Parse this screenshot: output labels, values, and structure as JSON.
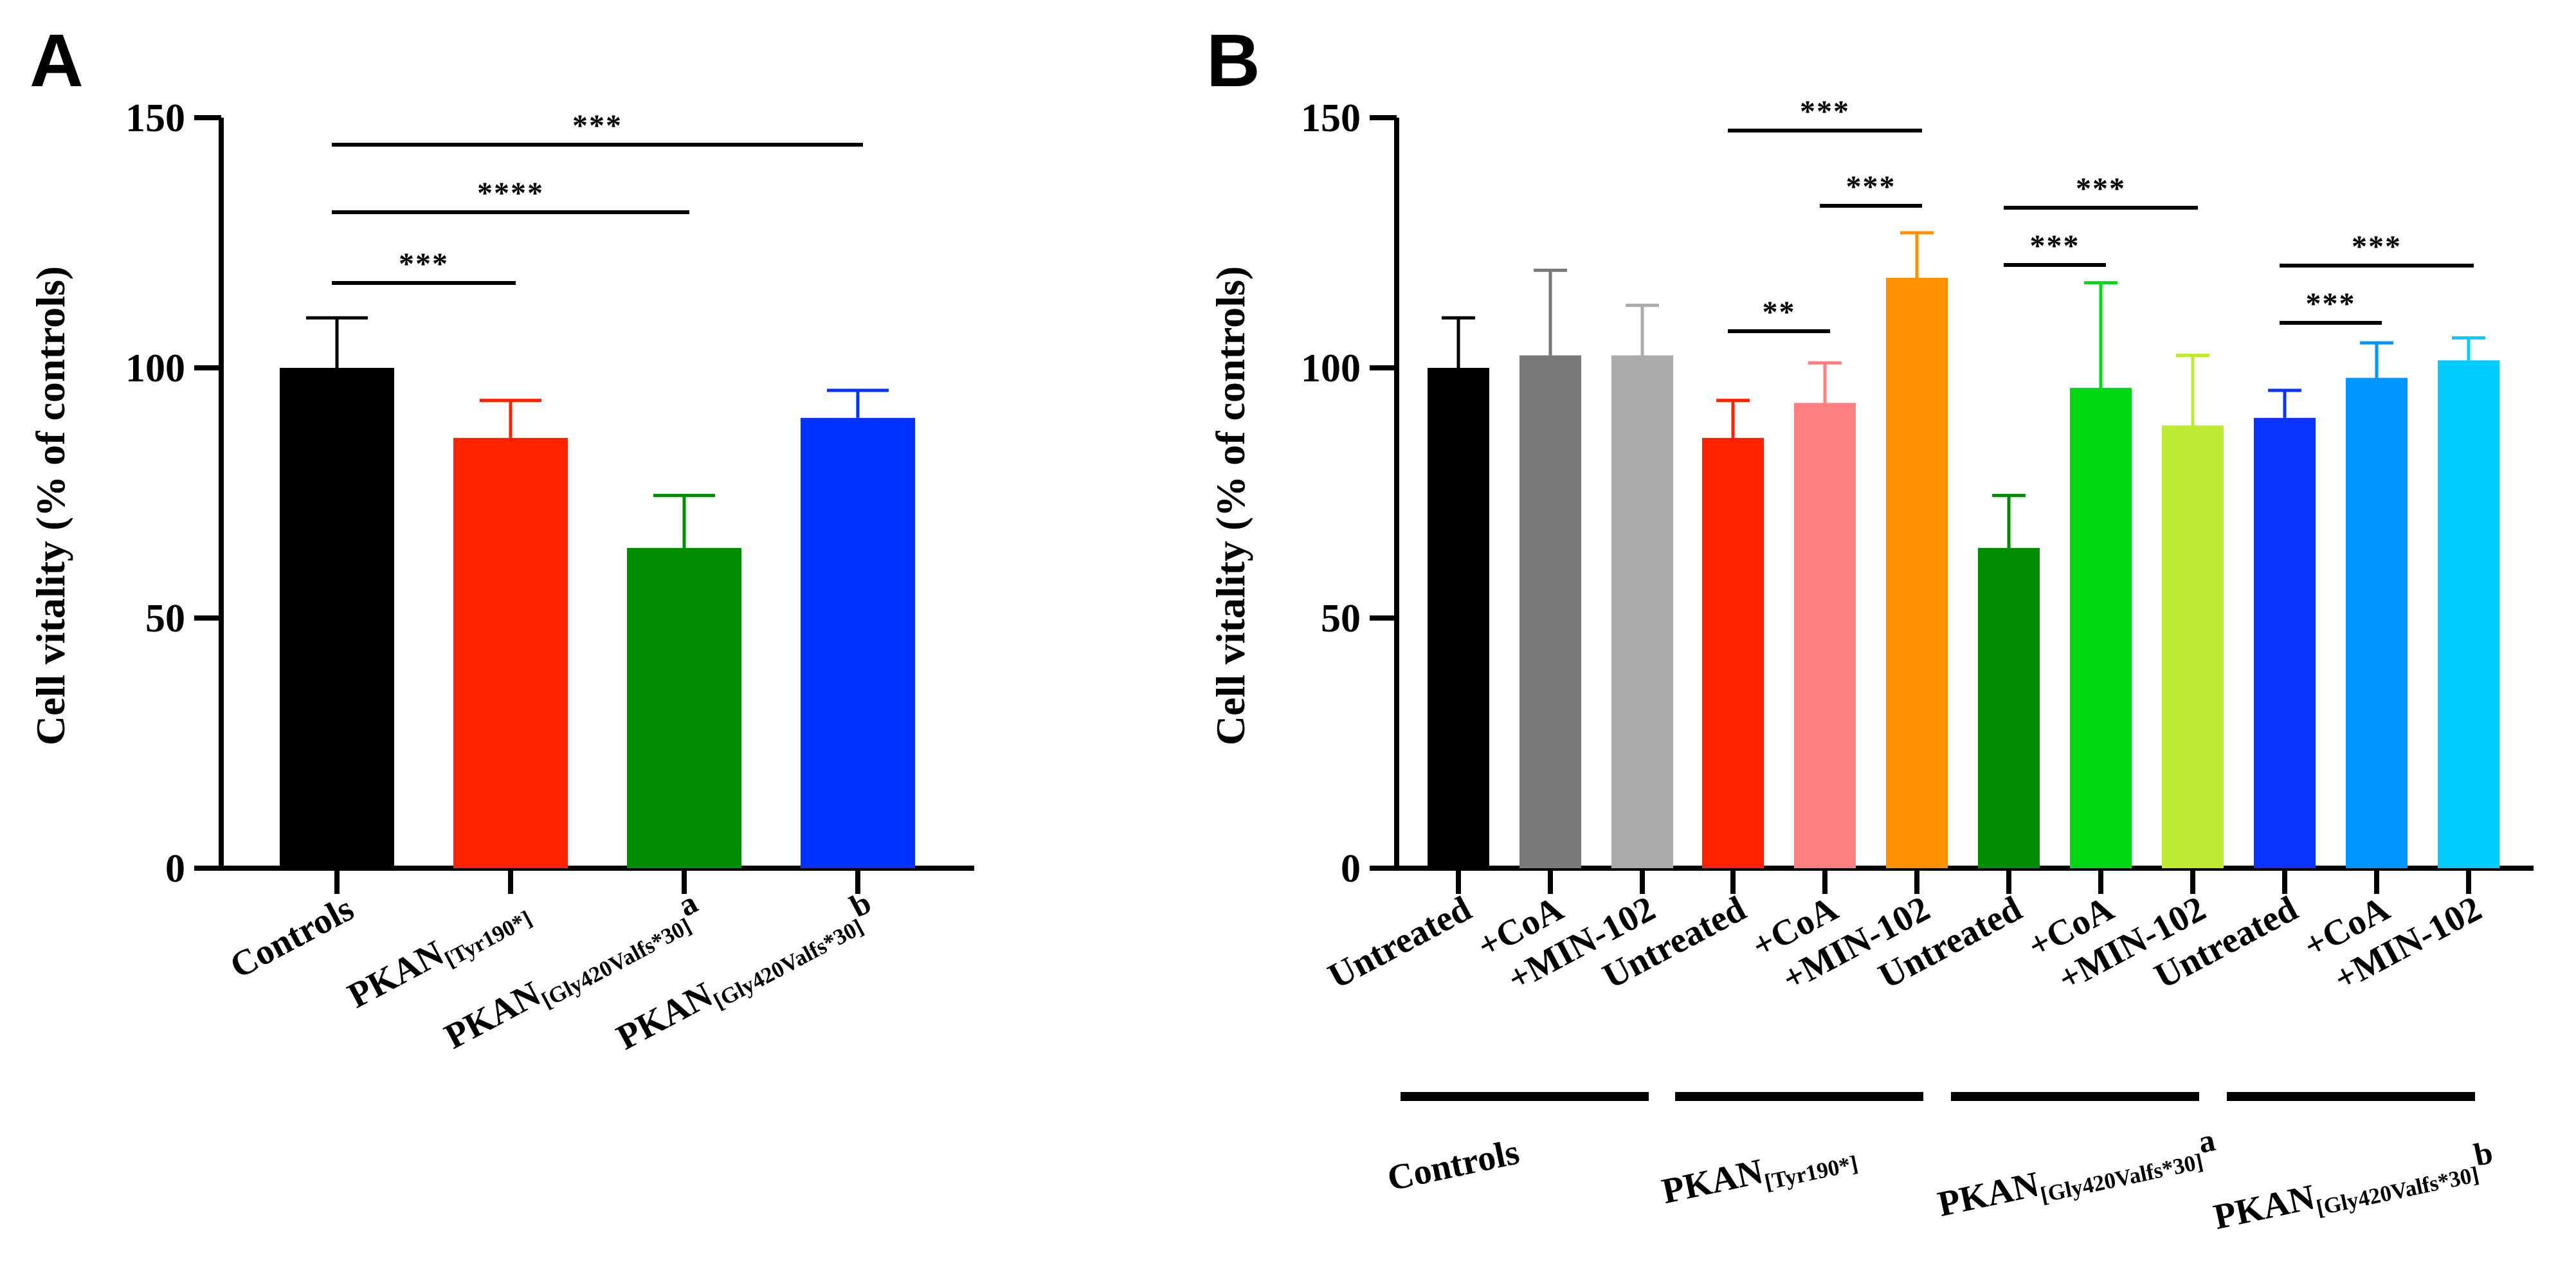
{
  "chart_data": [
    {
      "panel": "A",
      "type": "bar",
      "ylabel": "Cell vitality (% of controls)",
      "ylim": [
        0,
        150
      ],
      "yticks": [
        0,
        50,
        100,
        150
      ],
      "bars": [
        {
          "label_main": "Controls",
          "label_sub": "",
          "label_sup": "",
          "value": 100,
          "error": 10,
          "color": "#000000"
        },
        {
          "label_main": "PKAN",
          "label_sub": "[Tyr190*]",
          "label_sup": "",
          "value": 86,
          "error": 7.5,
          "color": "#FF2200"
        },
        {
          "label_main": "PKAN",
          "label_sub": "[Gly420Valfs*30]",
          "label_sup": "a",
          "value": 64,
          "error": 10.5,
          "color": "#008C00"
        },
        {
          "label_main": "PKAN",
          "label_sub": "[Gly420Valfs*30]",
          "label_sup": "b",
          "value": 90,
          "error": 5.5,
          "color": "#0033FF"
        }
      ],
      "significance": [
        {
          "from": 0,
          "to": 1,
          "label": "***"
        },
        {
          "from": 0,
          "to": 2,
          "label": "****"
        },
        {
          "from": 0,
          "to": 3,
          "label": "***"
        }
      ]
    },
    {
      "panel": "B",
      "type": "bar",
      "ylabel": "Cell vitality (% of controls)",
      "ylim": [
        0,
        150
      ],
      "yticks": [
        0,
        50,
        100,
        150
      ],
      "bars": [
        {
          "label": "Untreated",
          "value": 100,
          "error": 10,
          "color": "#000000"
        },
        {
          "label": "+CoA",
          "value": 102.5,
          "error": 17,
          "color": "#7A7A7A"
        },
        {
          "label": "+MIN-102",
          "value": 102.5,
          "error": 10,
          "color": "#ABABAB"
        },
        {
          "label": "Untreated",
          "value": 86,
          "error": 7.5,
          "color": "#FF2200"
        },
        {
          "label": "+CoA",
          "value": 93,
          "error": 8,
          "color": "#FF8080"
        },
        {
          "label": "+MIN-102",
          "value": 118,
          "error": 9,
          "color": "#FF9000"
        },
        {
          "label": "Untreated",
          "value": 64,
          "error": 10.5,
          "color": "#008C00"
        },
        {
          "label": "+CoA",
          "value": 96,
          "error": 21,
          "color": "#00D816"
        },
        {
          "label": "+MIN-102",
          "value": 88.5,
          "error": 14,
          "color": "#BDEB33"
        },
        {
          "label": "Untreated",
          "value": 90,
          "error": 5.5,
          "color": "#0A33FF"
        },
        {
          "label": "+CoA",
          "value": 98,
          "error": 7,
          "color": "#0096FF"
        },
        {
          "label": "+MIN-102",
          "value": 101.5,
          "error": 4.5,
          "color": "#00CCFF"
        }
      ],
      "groups": [
        {
          "label_main": "Controls",
          "label_sub": "",
          "label_sup": ""
        },
        {
          "label_main": "PKAN",
          "label_sub": "[Tyr190*]",
          "label_sup": ""
        },
        {
          "label_main": "PKAN",
          "label_sub": "[Gly420Valfs*30]",
          "label_sup": "a"
        },
        {
          "label_main": "PKAN",
          "label_sub": "[Gly420Valfs*30]",
          "label_sup": "b"
        }
      ],
      "significance": [
        {
          "from": 3,
          "to": 5,
          "label": "***"
        },
        {
          "from": 4,
          "to": 5,
          "label": "***"
        },
        {
          "from": 3,
          "to": 4,
          "label": "**"
        },
        {
          "from": 6,
          "to": 8,
          "label": "***"
        },
        {
          "from": 6,
          "to": 7,
          "label": "***"
        },
        {
          "from": 9,
          "to": 11,
          "label": "***"
        },
        {
          "from": 9,
          "to": 10,
          "label": "***"
        }
      ]
    }
  ]
}
